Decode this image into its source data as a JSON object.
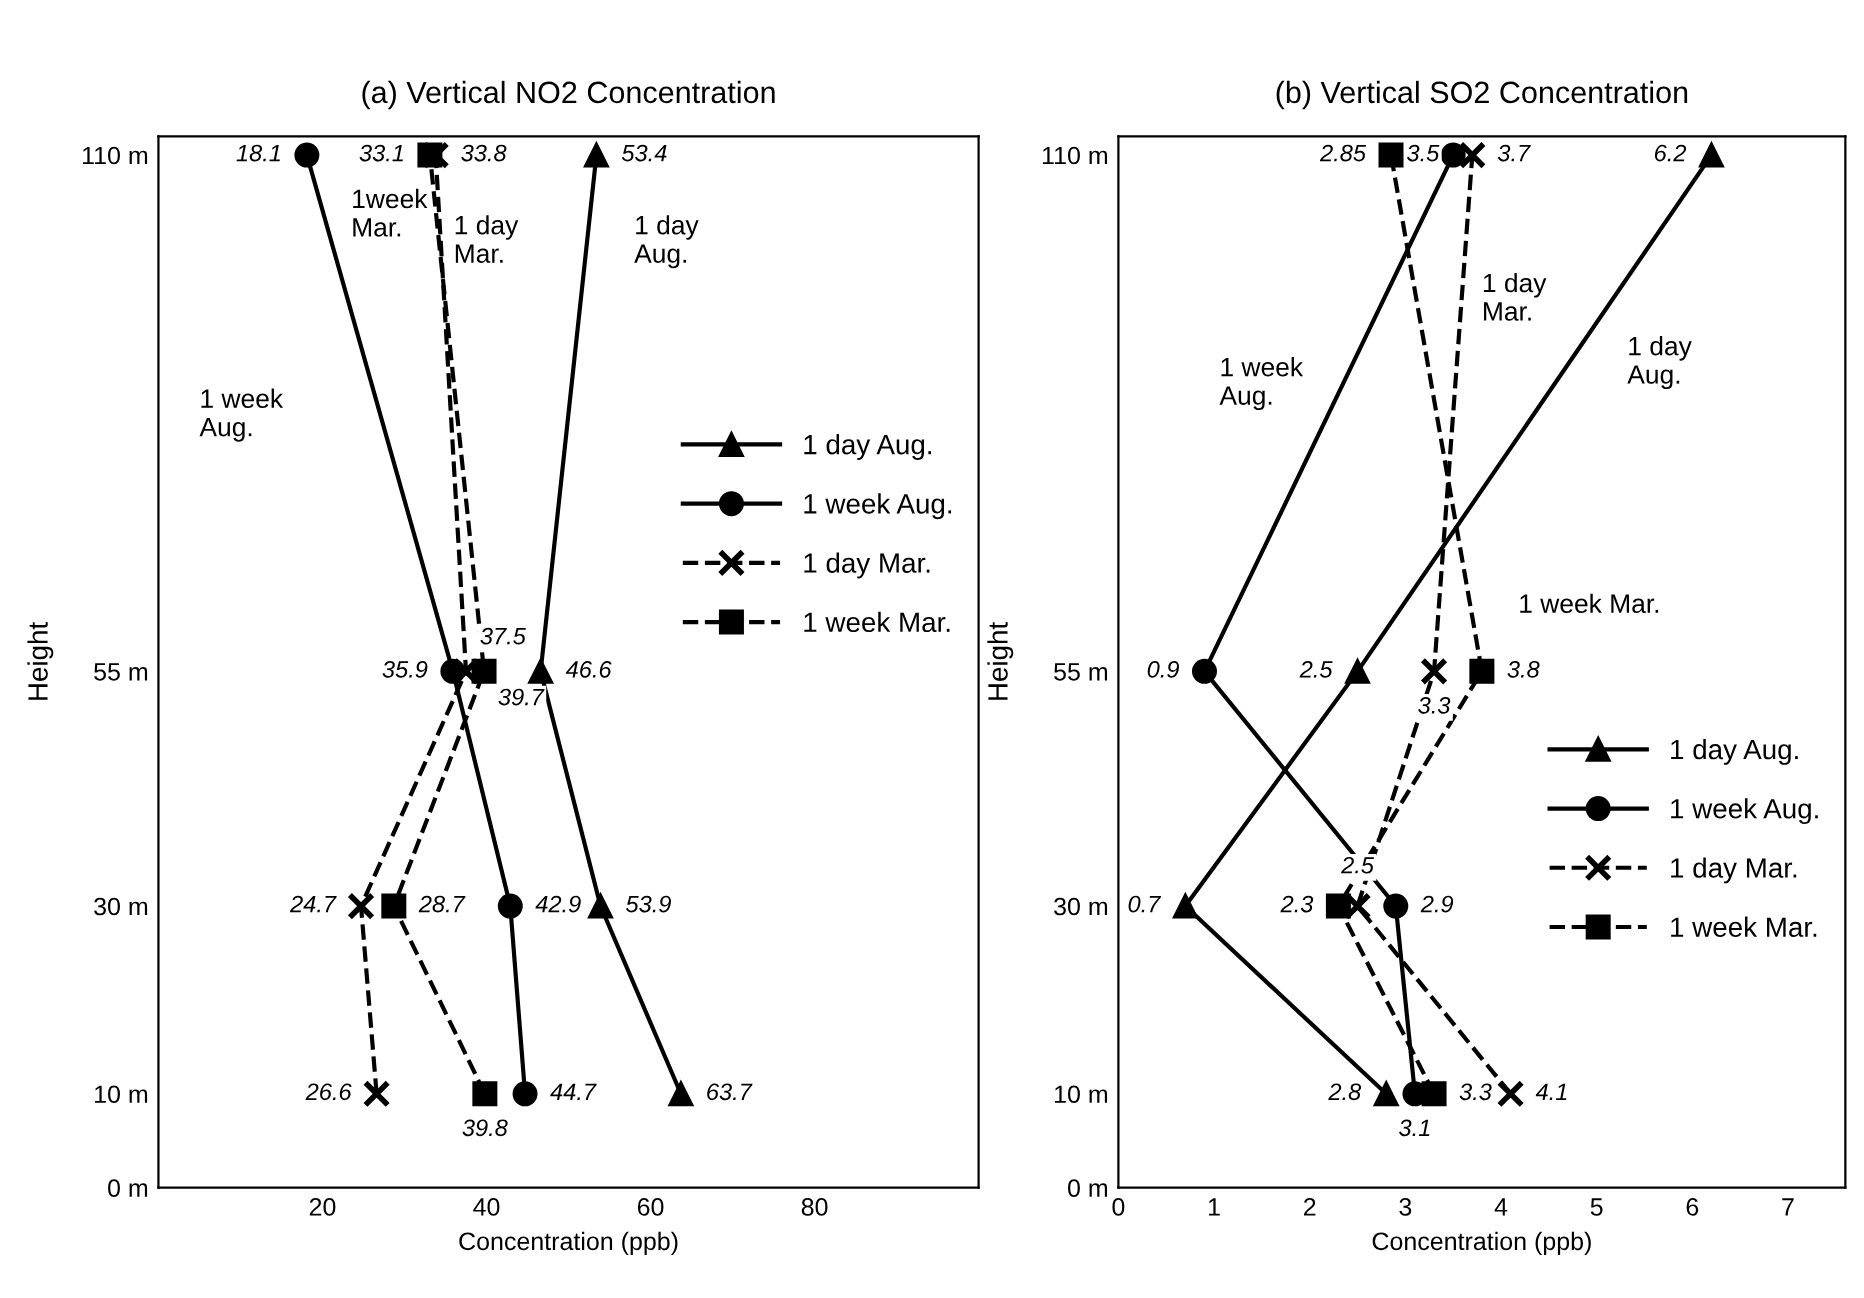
{
  "chart_data": [
    {
      "type": "line",
      "orientation": "horizontal",
      "title": "(a) Vertical NO2 Concentration",
      "xlabel": "Concentration (ppb)",
      "ylabel": "Height",
      "xlim": [
        0,
        100
      ],
      "xticks": [
        20,
        40,
        60,
        80
      ],
      "ylim": [
        0,
        112
      ],
      "yticks": [
        {
          "value": 0,
          "label": "0 m"
        },
        {
          "value": 10,
          "label": "10 m"
        },
        {
          "value": 30,
          "label": "30 m"
        },
        {
          "value": 55,
          "label": "55 m"
        },
        {
          "value": 110,
          "label": "110 m"
        }
      ],
      "legend": "center right",
      "data_labels": true,
      "series": [
        {
          "name": "1 day Aug.",
          "color": "#000000",
          "marker": "triangle",
          "line_style": "solid",
          "x": [
            10,
            30,
            55,
            110
          ],
          "values": [
            63.7,
            53.9,
            46.6,
            53.4
          ]
        },
        {
          "name": "1 week Aug.",
          "color": "#000000",
          "marker": "circle",
          "line_style": "solid",
          "x": [
            10,
            30,
            55,
            110
          ],
          "values": [
            44.7,
            42.9,
            35.9,
            18.1
          ]
        },
        {
          "name": "1 day Mar.",
          "color": "#000000",
          "marker": "cross",
          "line_style": "dashed",
          "x": [
            10,
            30,
            55,
            110
          ],
          "values": [
            26.6,
            24.7,
            37.5,
            33.8
          ]
        },
        {
          "name": "1 week Mar.",
          "color": "#000000",
          "marker": "square",
          "line_style": "dashed",
          "x": [
            10,
            30,
            55,
            110
          ],
          "values": [
            39.8,
            28.7,
            39.7,
            33.1
          ]
        }
      ],
      "annotations": [
        "1week\nMar.",
        "1 day\nMar.",
        "1 day\nAug.",
        "1 week\nAug."
      ]
    },
    {
      "type": "line",
      "orientation": "horizontal",
      "title": "(b) Vertical SO2 Concentration",
      "xlabel": "Concentration (ppb)",
      "ylabel": "Height",
      "xlim": [
        0,
        7.6
      ],
      "xticks": [
        0,
        1,
        2,
        3,
        4,
        5,
        6,
        7
      ],
      "ylim": [
        0,
        112
      ],
      "yticks": [
        {
          "value": 0,
          "label": "0 m"
        },
        {
          "value": 10,
          "label": "10 m"
        },
        {
          "value": 30,
          "label": "30 m"
        },
        {
          "value": 55,
          "label": "55 m"
        },
        {
          "value": 110,
          "label": "110 m"
        }
      ],
      "legend": "lower right",
      "data_labels": true,
      "series": [
        {
          "name": "1 day Aug.",
          "color": "#000000",
          "marker": "triangle",
          "line_style": "solid",
          "x": [
            10,
            30,
            55,
            110
          ],
          "values": [
            2.8,
            0.7,
            2.5,
            6.2
          ]
        },
        {
          "name": "1 week Aug.",
          "color": "#000000",
          "marker": "circle",
          "line_style": "solid",
          "x": [
            10,
            30,
            55,
            110
          ],
          "values": [
            3.1,
            2.9,
            0.9,
            3.5
          ]
        },
        {
          "name": "1 day Mar.",
          "color": "#000000",
          "marker": "cross",
          "line_style": "dashed",
          "x": [
            10,
            30,
            55,
            110
          ],
          "values": [
            4.1,
            2.5,
            3.3,
            3.7
          ]
        },
        {
          "name": "1 week Mar.",
          "color": "#000000",
          "marker": "square",
          "line_style": "dashed",
          "x": [
            10,
            30,
            55,
            110
          ],
          "values": [
            3.3,
            2.3,
            3.8,
            2.85
          ]
        }
      ],
      "annotations": [
        "1 week\nAug.",
        "1 day\nMar.",
        "1 day\nAug.",
        "1 week Mar."
      ]
    }
  ]
}
